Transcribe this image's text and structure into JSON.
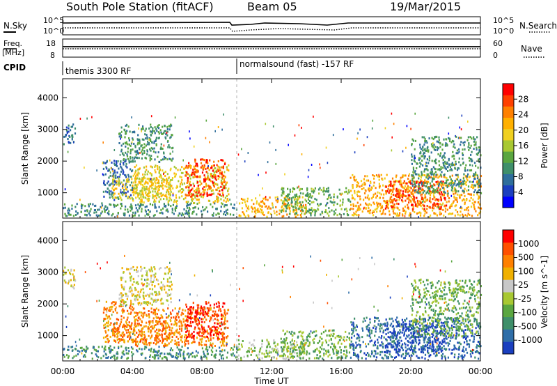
{
  "header": {
    "station": "South Pole Station (fitACF)",
    "beam": "Beam 05",
    "date": "19/Mar/2015"
  },
  "top_panels": {
    "nsky": {
      "label": "N.Sky",
      "ticks": [
        "10^5",
        "10^0"
      ]
    },
    "nsearch": {
      "label": "N.Search",
      "ticks": [
        "10^5",
        "10^0"
      ]
    },
    "freq": {
      "label": "Freq.",
      "unit": "[MHz]",
      "ticks": [
        "18",
        "8"
      ]
    },
    "nave": {
      "label": "Nave",
      "ticks": [
        "60",
        "0"
      ]
    },
    "cpid": {
      "label": "CPID",
      "segments": [
        {
          "name": "themis 3300 RF",
          "start_hour": 0
        },
        {
          "name": "normalsound (fast) -157 RF",
          "start_hour": 10
        }
      ]
    }
  },
  "chart_data": [
    {
      "type": "heatmap",
      "name": "power",
      "ylabel": "Slant Range [km]",
      "xlabel": "",
      "xlim": [
        0,
        24
      ],
      "ylim": [
        200,
        4600
      ],
      "yticks": [
        "1000",
        "2000",
        "3000",
        "4000"
      ],
      "xticks": [
        "00:00",
        "04:00",
        "08:00",
        "12:00",
        "16:00",
        "20:00",
        "00:00"
      ],
      "colorbar": {
        "label": "Power [dB]",
        "ticks": [
          "28",
          "24",
          "20",
          "16",
          "12",
          "8",
          "4"
        ],
        "colors": [
          "#0000ff",
          "#1c3fbf",
          "#2f6e9b",
          "#3f8f6a",
          "#5aa640",
          "#a8c832",
          "#f0d020",
          "#ffb000",
          "#ff8000",
          "#ff4000",
          "#ff0000"
        ]
      },
      "regions": [
        {
          "t0": 0.0,
          "t1": 0.7,
          "r0": 2500,
          "r1": 3200,
          "level": 2
        },
        {
          "t0": 0.0,
          "t1": 10.0,
          "r0": 300,
          "r1": 700,
          "level": 3
        },
        {
          "t0": 2.3,
          "t1": 4.0,
          "r0": 800,
          "r1": 2100,
          "level": 2
        },
        {
          "t0": 2.8,
          "t1": 6.3,
          "r0": 800,
          "r1": 1500,
          "level": 6
        },
        {
          "t0": 3.2,
          "t1": 6.3,
          "r0": 2000,
          "r1": 3200,
          "level": 3
        },
        {
          "t0": 4.0,
          "t1": 9.5,
          "r0": 700,
          "r1": 1900,
          "level": 6
        },
        {
          "t0": 7.0,
          "t1": 9.3,
          "r0": 900,
          "r1": 2100,
          "level": 9
        },
        {
          "t0": 10.0,
          "t1": 14.0,
          "r0": 250,
          "r1": 900,
          "level": 7
        },
        {
          "t0": 12.5,
          "t1": 16.5,
          "r0": 300,
          "r1": 1200,
          "level": 4
        },
        {
          "t0": 16.5,
          "t1": 24.0,
          "r0": 300,
          "r1": 1600,
          "level": 7
        },
        {
          "t0": 18.5,
          "t1": 22.0,
          "r0": 500,
          "r1": 1400,
          "level": 9
        },
        {
          "t0": 20.0,
          "t1": 24.0,
          "r0": 1000,
          "r1": 2800,
          "level": 3
        }
      ]
    },
    {
      "type": "heatmap",
      "name": "velocity",
      "ylabel": "Slant Range [km]",
      "xlabel": "Time UT",
      "xlim": [
        0,
        24
      ],
      "ylim": [
        200,
        4600
      ],
      "yticks": [
        "1000",
        "2000",
        "3000",
        "4000"
      ],
      "xticks": [
        "00:00",
        "04:00",
        "08:00",
        "12:00",
        "16:00",
        "20:00",
        "00:00"
      ],
      "colorbar": {
        "label": "Velocity [m s^-1]",
        "ticks": [
          "1000",
          "500",
          "100",
          "25",
          "-25",
          "-100",
          "-500",
          "-1000"
        ],
        "colors": [
          "#1a3fbf",
          "#2f6ea8",
          "#3f8f6a",
          "#5aa640",
          "#a8c832",
          "#c8c8c8",
          "#f0b000",
          "#ff8000",
          "#ff5000",
          "#ff0000"
        ]
      },
      "regions": [
        {
          "t0": 0.0,
          "t1": 0.7,
          "r0": 2500,
          "r1": 3200,
          "level": 5
        },
        {
          "t0": 0.0,
          "t1": 10.0,
          "r0": 300,
          "r1": 700,
          "level": 2
        },
        {
          "t0": 2.3,
          "t1": 4.0,
          "r0": 800,
          "r1": 2100,
          "level": 7
        },
        {
          "t0": 2.8,
          "t1": 6.3,
          "r0": 800,
          "r1": 1500,
          "level": 7
        },
        {
          "t0": 3.2,
          "t1": 6.3,
          "r0": 2000,
          "r1": 3200,
          "level": 5
        },
        {
          "t0": 4.0,
          "t1": 9.5,
          "r0": 700,
          "r1": 1900,
          "level": 7
        },
        {
          "t0": 7.0,
          "t1": 9.3,
          "r0": 900,
          "r1": 2100,
          "level": 9
        },
        {
          "t0": 10.0,
          "t1": 14.0,
          "r0": 250,
          "r1": 900,
          "level": 4
        },
        {
          "t0": 12.5,
          "t1": 16.5,
          "r0": 300,
          "r1": 1200,
          "level": 3
        },
        {
          "t0": 16.5,
          "t1": 24.0,
          "r0": 300,
          "r1": 1600,
          "level": 1
        },
        {
          "t0": 18.5,
          "t1": 22.0,
          "r0": 500,
          "r1": 1400,
          "level": 0
        },
        {
          "t0": 20.0,
          "t1": 24.0,
          "r0": 1000,
          "r1": 2800,
          "level": 3
        }
      ]
    }
  ]
}
